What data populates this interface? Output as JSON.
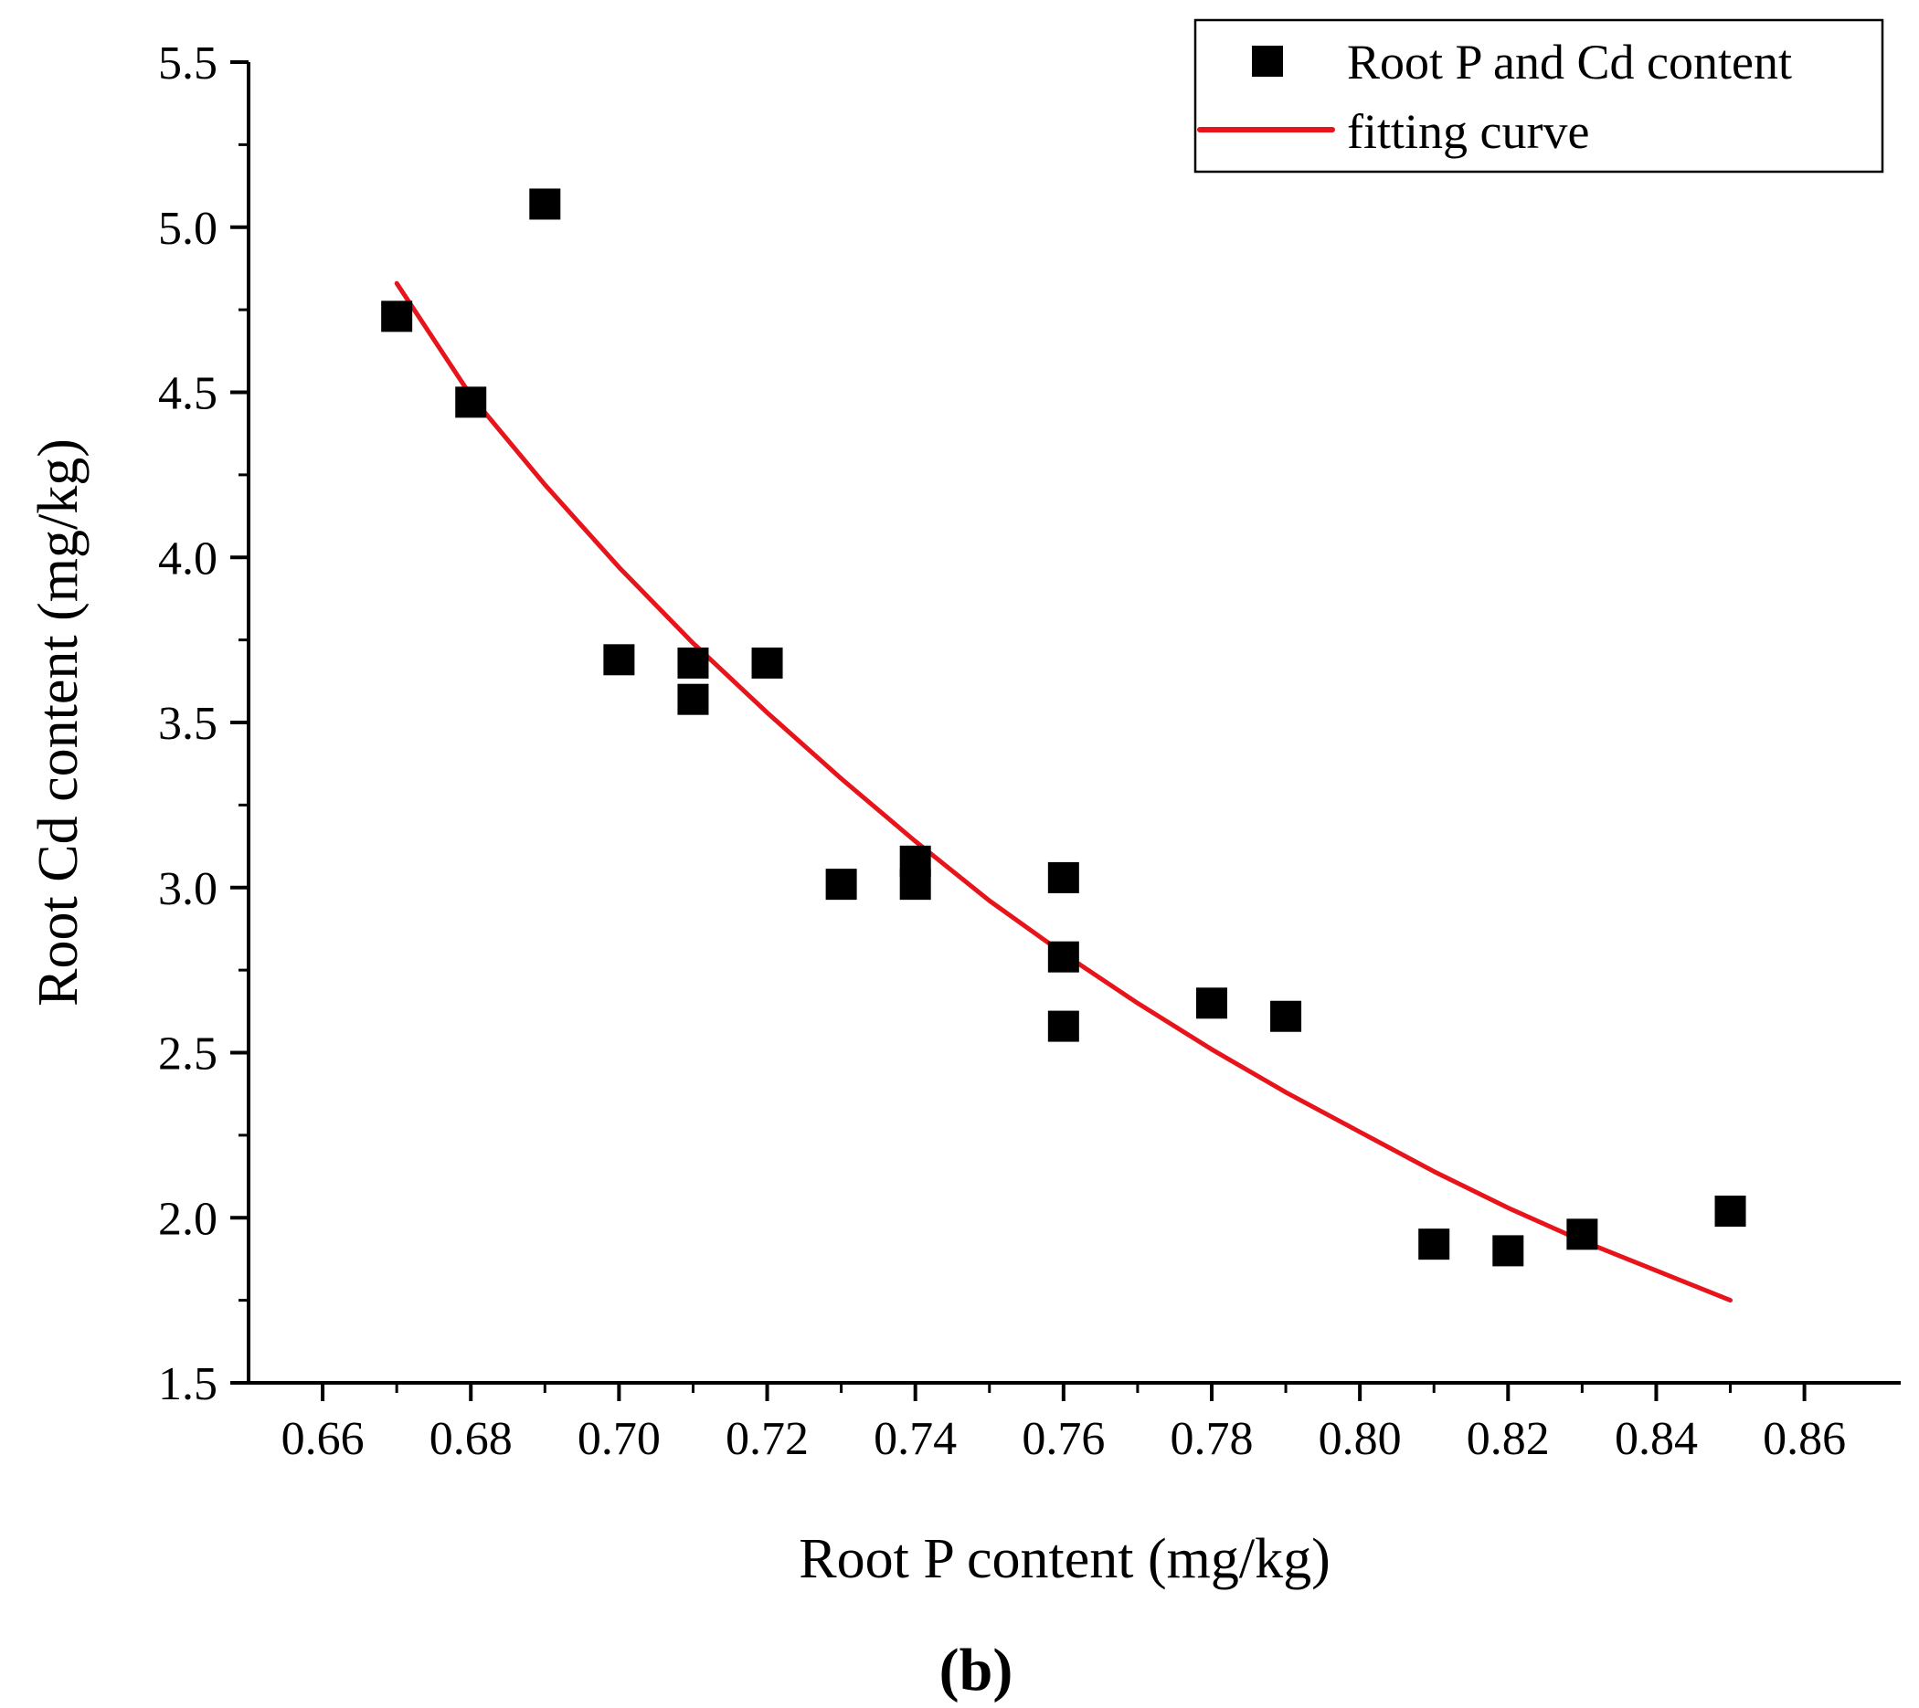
{
  "chart_data": {
    "type": "scatter",
    "title": "",
    "xlabel": "Root P content (mg/kg)",
    "ylabel": "Root Cd content (mg/kg)",
    "xlim": [
      0.65,
      0.873
    ],
    "ylim": [
      1.5,
      5.5
    ],
    "x_ticks": [
      0.66,
      0.68,
      0.7,
      0.72,
      0.74,
      0.76,
      0.78,
      0.8,
      0.82,
      0.84,
      0.86
    ],
    "x_tick_labels": [
      "0.66",
      "0.68",
      "0.70",
      "0.72",
      "0.74",
      "0.76",
      "0.78",
      "0.80",
      "0.82",
      "0.84",
      "0.86"
    ],
    "y_ticks": [
      1.5,
      2.0,
      2.5,
      3.0,
      3.5,
      4.0,
      4.5,
      5.0,
      5.5
    ],
    "y_tick_labels": [
      "1.5",
      "2.0",
      "2.5",
      "3.0",
      "3.5",
      "4.0",
      "4.5",
      "5.0",
      "5.5"
    ],
    "grid": false,
    "legend_position": "top-right",
    "series": [
      {
        "name": "Root P and Cd content",
        "kind": "scatter",
        "marker": "square",
        "color": "#000000",
        "x": [
          0.67,
          0.68,
          0.69,
          0.7,
          0.71,
          0.71,
          0.72,
          0.73,
          0.74,
          0.74,
          0.76,
          0.76,
          0.76,
          0.78,
          0.79,
          0.81,
          0.82,
          0.83,
          0.85
        ],
        "y": [
          4.73,
          4.47,
          5.07,
          3.69,
          3.68,
          3.57,
          3.68,
          3.01,
          3.08,
          3.01,
          3.03,
          2.79,
          2.58,
          2.65,
          2.61,
          1.92,
          1.9,
          1.95,
          2.02
        ]
      },
      {
        "name": "fitting curve",
        "kind": "line",
        "color": "#e8141c",
        "x": [
          0.67,
          0.68,
          0.69,
          0.7,
          0.71,
          0.72,
          0.73,
          0.74,
          0.75,
          0.76,
          0.77,
          0.78,
          0.79,
          0.8,
          0.81,
          0.82,
          0.83,
          0.84,
          0.85
        ],
        "y": [
          4.83,
          4.49,
          4.22,
          3.97,
          3.74,
          3.53,
          3.33,
          3.14,
          2.96,
          2.8,
          2.65,
          2.51,
          2.38,
          2.26,
          2.14,
          2.03,
          1.93,
          1.84,
          1.75
        ]
      }
    ],
    "panel_label": "(b)"
  }
}
